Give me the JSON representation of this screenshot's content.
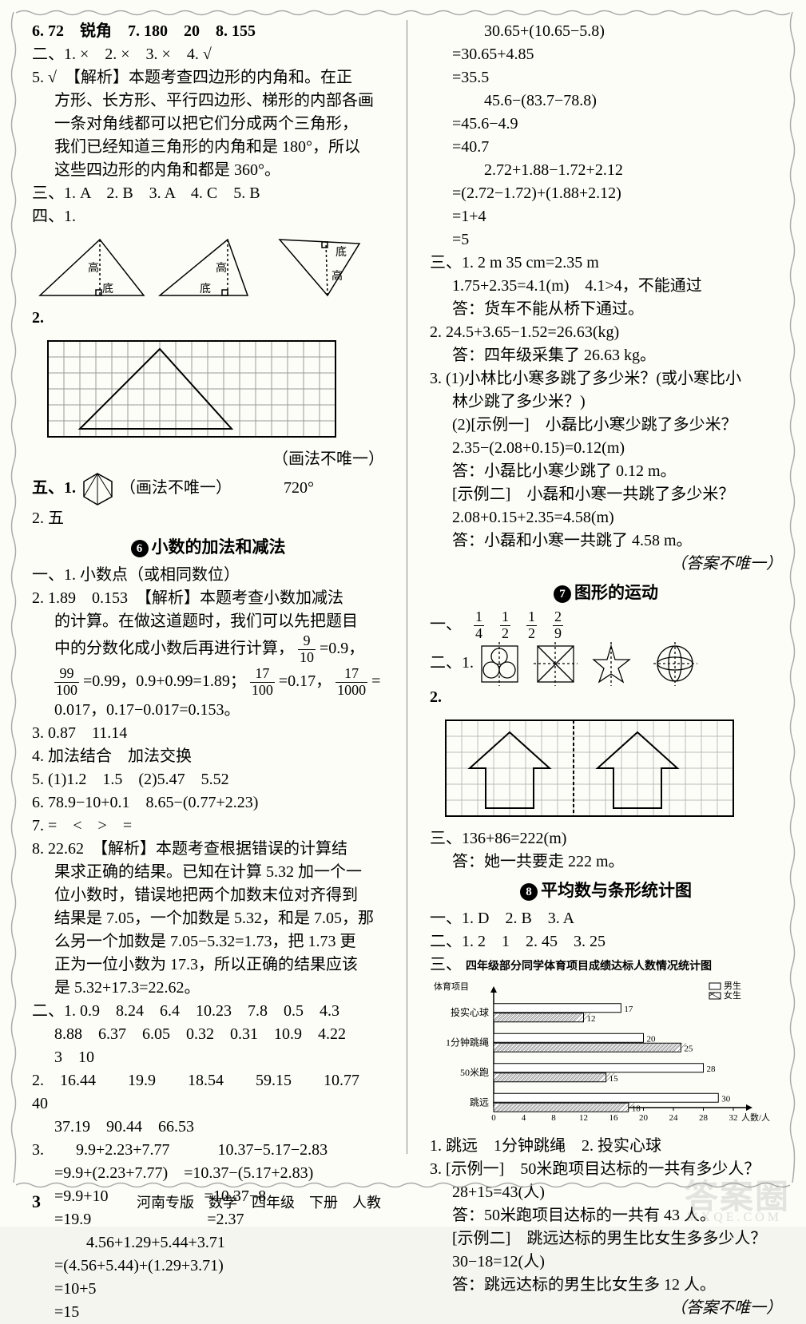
{
  "left": {
    "l1": "6. 72　锐角　7. 180　20　8. 155",
    "l2": "二、1. ×　2. ×　3. ×　4. √",
    "l3": "5. √　【解析】本题考查四边形的内角和。在正",
    "l4": "方形、长方形、平行四边形、梯形的内部各画",
    "l5": "一条对角线都可以把它们分成两个三角形，",
    "l6": "我们已经知道三角形的内角和是 180°，所以",
    "l7": "这些四边形的内角和都是 360°。",
    "l8": "三、1. A　2. B　3. A　4. C　5. B",
    "l9": "四、1.",
    "tri_labels": {
      "a": "高",
      "b": "底",
      "c": "高",
      "d": "底",
      "e": "底",
      "f": "高"
    },
    "l10": "2.",
    "grid_note": "（画法不唯一）",
    "l11": "五、1.",
    "hex_note": "（画法不唯一）",
    "hex_val": "720°",
    "l12": "2. 五",
    "sec6_title": "小数的加法和减法",
    "s6_1": "一、1. 小数点（或相同数位）",
    "s6_2a": "2. 1.89　0.153　【解析】本题考查小数加减法",
    "s6_2b": "的计算。在做这道题时，我们可以先把题目",
    "s6_2c": "中的分数化成小数后再进行计算，",
    "s6_2d": "=0.99，0.9+0.99=1.89；",
    "s6_2e": "=0.17，",
    "s6_2f": "0.017，0.17−0.017=0.153。",
    "s6_3": "3. 0.87　11.14",
    "s6_4": "4. 加法结合　加法交换",
    "s6_5": "5. (1)1.2　1.5　(2)5.47　5.52",
    "s6_6": "6. 78.9−10+0.1　8.65−(0.77+2.23)",
    "s6_7": "7. =　<　>　=",
    "s6_8a": "8. 22.62　【解析】本题考查根据错误的计算结",
    "s6_8b": "果求正确的结果。已知在计算 5.32 加一个一",
    "s6_8c": "位小数时，错误地把两个加数末位对齐得到",
    "s6_8d": "结果是 7.05，一个加数是 5.32，和是 7.05，那",
    "s6_8e": "么另一个加数是 7.05−5.32=1.73，把 1.73 更",
    "s6_8f": "正为一位小数为 17.3，所以正确的结果应该",
    "s6_8g": "是 5.32+17.3=22.62。",
    "s6_b1a": "二、1. 0.9　8.24　6.4　10.23　7.8　0.5　4.3",
    "s6_b1b": "8.88　6.37　6.05　0.32　0.31　10.9　4.22",
    "s6_b1c": "3　10",
    "s6_b2a": "2.　16.44　　19.9　　18.54　　59.15　　10.77　　40",
    "s6_b2b": "37.19　90.44　66.53",
    "s6_b3a": "3.　　9.9+2.23+7.77　　　10.37−5.17−2.83",
    "s6_b3b": "=9.9+(2.23+7.77)　=10.37−(5.17+2.83)",
    "s6_b3c": "=9.9+10　　　　　　=10.37−8",
    "s6_b3d": "=19.9　　　　　　　 =2.37",
    "s6_b3e": "　　4.56+1.29+5.44+3.71",
    "s6_b3f": "=(4.56+5.44)+(1.29+3.71)",
    "s6_b3g": "=10+5",
    "s6_b3h": "=15",
    "fracs": {
      "f1n": "9",
      "f1d": "10",
      "f1eq": "=0.9，",
      "f2n": "99",
      "f2d": "100",
      "f3n": "17",
      "f3d": "100",
      "f4n": "17",
      "f4d": "1000",
      "f4eq": "="
    }
  },
  "right": {
    "r1": "　　30.65+(10.65−5.8)",
    "r2": "=30.65+4.85",
    "r3": "=35.5",
    "r4": "　　45.6−(83.7−78.8)",
    "r5": "=45.6−4.9",
    "r6": "=40.7",
    "r7": "　　2.72+1.88−1.72+2.12",
    "r8": "=(2.72−1.72)+(1.88+2.12)",
    "r9": "=1+4",
    "r10": "=5",
    "r11": "三、1. 2 m 35 cm=2.35 m",
    "r12": "1.75+2.35=4.1(m)　4.1>4，不能通过",
    "r13": "答：货车不能从桥下通过。",
    "r14": "2. 24.5+3.65−1.52=26.63(kg)",
    "r15": "答：四年级采集了 26.63 kg。",
    "r16": "3. (1)小林比小寒多跳了多少米？(或小寒比小",
    "r17": "林少跳了多少米？)",
    "r18": "(2)[示例一]　小磊比小寒少跳了多少米？",
    "r19": "2.35−(2.08+0.15)=0.12(m)",
    "r20": "答：小磊比小寒少跳了 0.12 m。",
    "r21": "[示例二]　小磊和小寒一共跳了多少米？",
    "r22": "2.08+0.15+2.35=4.58(m)",
    "r23": "答：小磊和小寒一共跳了 4.58 m。",
    "r24": "（答案不唯一）",
    "sec7_title": "图形的运动",
    "s7_1_pre": "一、",
    "s7_fracs": [
      {
        "n": "1",
        "d": "4"
      },
      {
        "n": "1",
        "d": "2"
      },
      {
        "n": "1",
        "d": "2"
      },
      {
        "n": "2",
        "d": "9"
      }
    ],
    "s7_2": "二、1.",
    "s7_2b": "2.",
    "s7_3a": "三、136+86=222(m)",
    "s7_3b": "答：她一共要走 222 m。",
    "sec8_title": "平均数与条形统计图",
    "s8_1": "一、1. D　2. B　3. A",
    "s8_2": "二、1. 2　1　2. 45　3. 25",
    "s8_3": "三、",
    "chart": {
      "title": "四年级部分同学体育项目成绩达标人数情况统计图",
      "ylabel": "体育项目",
      "xlabel": "人数/人",
      "legend": [
        "男生",
        "女生"
      ],
      "categories": [
        "投实心球",
        "1分钟跳绳",
        "50米跑",
        "跳远"
      ],
      "boys": [
        17,
        20,
        28,
        30
      ],
      "girls": [
        12,
        25,
        15,
        18
      ],
      "xticks": [
        0,
        4,
        8,
        12,
        16,
        20,
        24,
        28,
        32
      ],
      "bar_fill": "#ffffff",
      "bar_stroke": "#000000",
      "bg": "#fdfdf8"
    },
    "s8_q1": "1. 跳远　1分钟跳绳　2. 投实心球",
    "s8_q3a": "3. [示例一]　50米跑项目达标的一共有多少人？",
    "s8_q3b": "28+15=43(人)",
    "s8_q3c": "答：50米跑项目达标的一共有 43 人。",
    "s8_q3d": "[示例二]　跳远达标的男生比女生多多少人？",
    "s8_q3e": "30−18=12(人)",
    "s8_q3f": "答：跳远达标的男生比女生多 12 人。",
    "s8_q3g": "（答案不唯一）"
  },
  "footer": {
    "page": "3",
    "text": "河南专版　数学　四年级　下册　人教"
  },
  "watermark": "答案圈",
  "watermark_sub": "MXQE.COM"
}
